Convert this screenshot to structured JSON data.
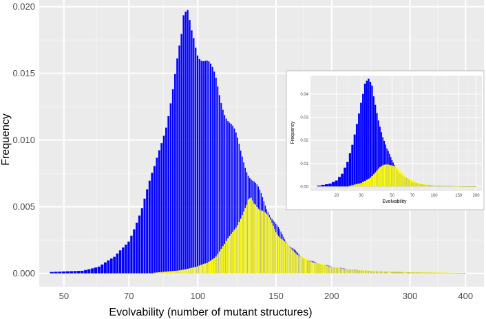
{
  "chart_data": [
    {
      "type": "bar",
      "xlabel": "Evolvability (number of mutant structures)",
      "ylabel": "Frequency",
      "x_scale": "log",
      "xlim": [
        44,
        440
      ],
      "ylim": [
        -0.001,
        0.0205
      ],
      "x_ticks": [
        50,
        70,
        100,
        150,
        200,
        300,
        400
      ],
      "x_tick_labels": [
        "50",
        "70",
        "100",
        "150",
        "200",
        "300",
        "400"
      ],
      "y_ticks": [
        0.0,
        0.005,
        0.01,
        0.015,
        0.02
      ],
      "y_tick_labels": [
        "0.000",
        "0.005",
        "0.010",
        "0.015",
        "0.020"
      ],
      "grid": true,
      "series": [
        {
          "color": "#0000ff",
          "x_start": 47,
          "x_end": 400,
          "peak_x": 95,
          "peak_value": 0.0192,
          "profile_x": [
            47,
            55,
            60,
            65,
            70,
            75,
            80,
            85,
            90,
            93,
            95,
            98,
            100,
            103,
            107,
            110,
            115,
            120,
            125,
            130,
            135,
            140,
            145,
            150,
            160,
            170,
            180,
            200,
            220,
            250,
            300,
            350,
            400
          ],
          "profile_values": [
            0.0001,
            0.0002,
            0.0005,
            0.0012,
            0.0025,
            0.0048,
            0.0078,
            0.0115,
            0.0158,
            0.0178,
            0.0188,
            0.0182,
            0.0172,
            0.0162,
            0.015,
            0.0143,
            0.0125,
            0.0108,
            0.009,
            0.0077,
            0.0066,
            0.0056,
            0.0046,
            0.0036,
            0.0022,
            0.0013,
            0.0009,
            0.0005,
            0.0003,
            0.00015,
            8e-05,
            4e-05,
            2e-05
          ]
        },
        {
          "color": "#ffff00",
          "x_start": 80,
          "x_end": 400,
          "peak_x": 132,
          "peak_value": 0.0055,
          "profile_x": [
            80,
            90,
            100,
            105,
            110,
            115,
            120,
            125,
            130,
            135,
            140,
            145,
            150,
            160,
            170,
            180,
            200,
            220,
            250,
            300,
            350,
            400
          ],
          "profile_values": [
            5e-05,
            0.0002,
            0.0005,
            0.0008,
            0.0013,
            0.0021,
            0.0032,
            0.0042,
            0.0051,
            0.0053,
            0.0048,
            0.004,
            0.0032,
            0.002,
            0.0013,
            0.0009,
            0.0005,
            0.0003,
            0.0002,
            0.0001,
            6e-05,
            3e-05
          ]
        }
      ]
    },
    {
      "type": "bar",
      "inset": true,
      "xlabel": "Evolvability",
      "ylabel": "Frequency",
      "x_scale": "log",
      "xlim": [
        13,
        220
      ],
      "ylim": [
        -0.002,
        0.048
      ],
      "x_ticks": [
        20,
        30,
        50,
        70,
        100,
        150,
        200
      ],
      "x_tick_labels": [
        "20",
        "30",
        "50",
        "70",
        "100",
        "150",
        "200"
      ],
      "y_ticks": [
        0.0,
        0.01,
        0.02,
        0.03,
        0.04
      ],
      "y_tick_labels": [
        "0.00",
        "0.01",
        "0.02",
        "0.03",
        "0.04"
      ],
      "grid": true,
      "series": [
        {
          "color": "#0000ff",
          "x_start": 15,
          "x_end": 200,
          "peak_x": 34,
          "peak_value": 0.0445,
          "profile_x": [
            15,
            18,
            20,
            22,
            24,
            26,
            28,
            30,
            32,
            34,
            36,
            38,
            40,
            43,
            46,
            50,
            55,
            60,
            70,
            80,
            100,
            130,
            160,
            200
          ],
          "profile_values": [
            0.0004,
            0.0012,
            0.0025,
            0.0055,
            0.011,
            0.019,
            0.028,
            0.036,
            0.042,
            0.0445,
            0.042,
            0.036,
            0.03,
            0.022,
            0.016,
            0.011,
            0.007,
            0.0045,
            0.002,
            0.001,
            0.0004,
            0.00015,
            6e-05,
            2e-05
          ]
        },
        {
          "color": "#ffff00",
          "x_start": 25,
          "x_end": 200,
          "peak_x": 47,
          "peak_value": 0.01,
          "profile_x": [
            25,
            30,
            35,
            38,
            41,
            44,
            47,
            50,
            53,
            56,
            60,
            65,
            70,
            80,
            90,
            100,
            120,
            150,
            200
          ],
          "profile_values": [
            0.0003,
            0.0015,
            0.004,
            0.006,
            0.008,
            0.0093,
            0.01,
            0.0095,
            0.0085,
            0.0072,
            0.0055,
            0.0038,
            0.0026,
            0.0013,
            0.0007,
            0.0004,
            0.0002,
            0.0001,
            3e-05
          ]
        }
      ]
    }
  ]
}
